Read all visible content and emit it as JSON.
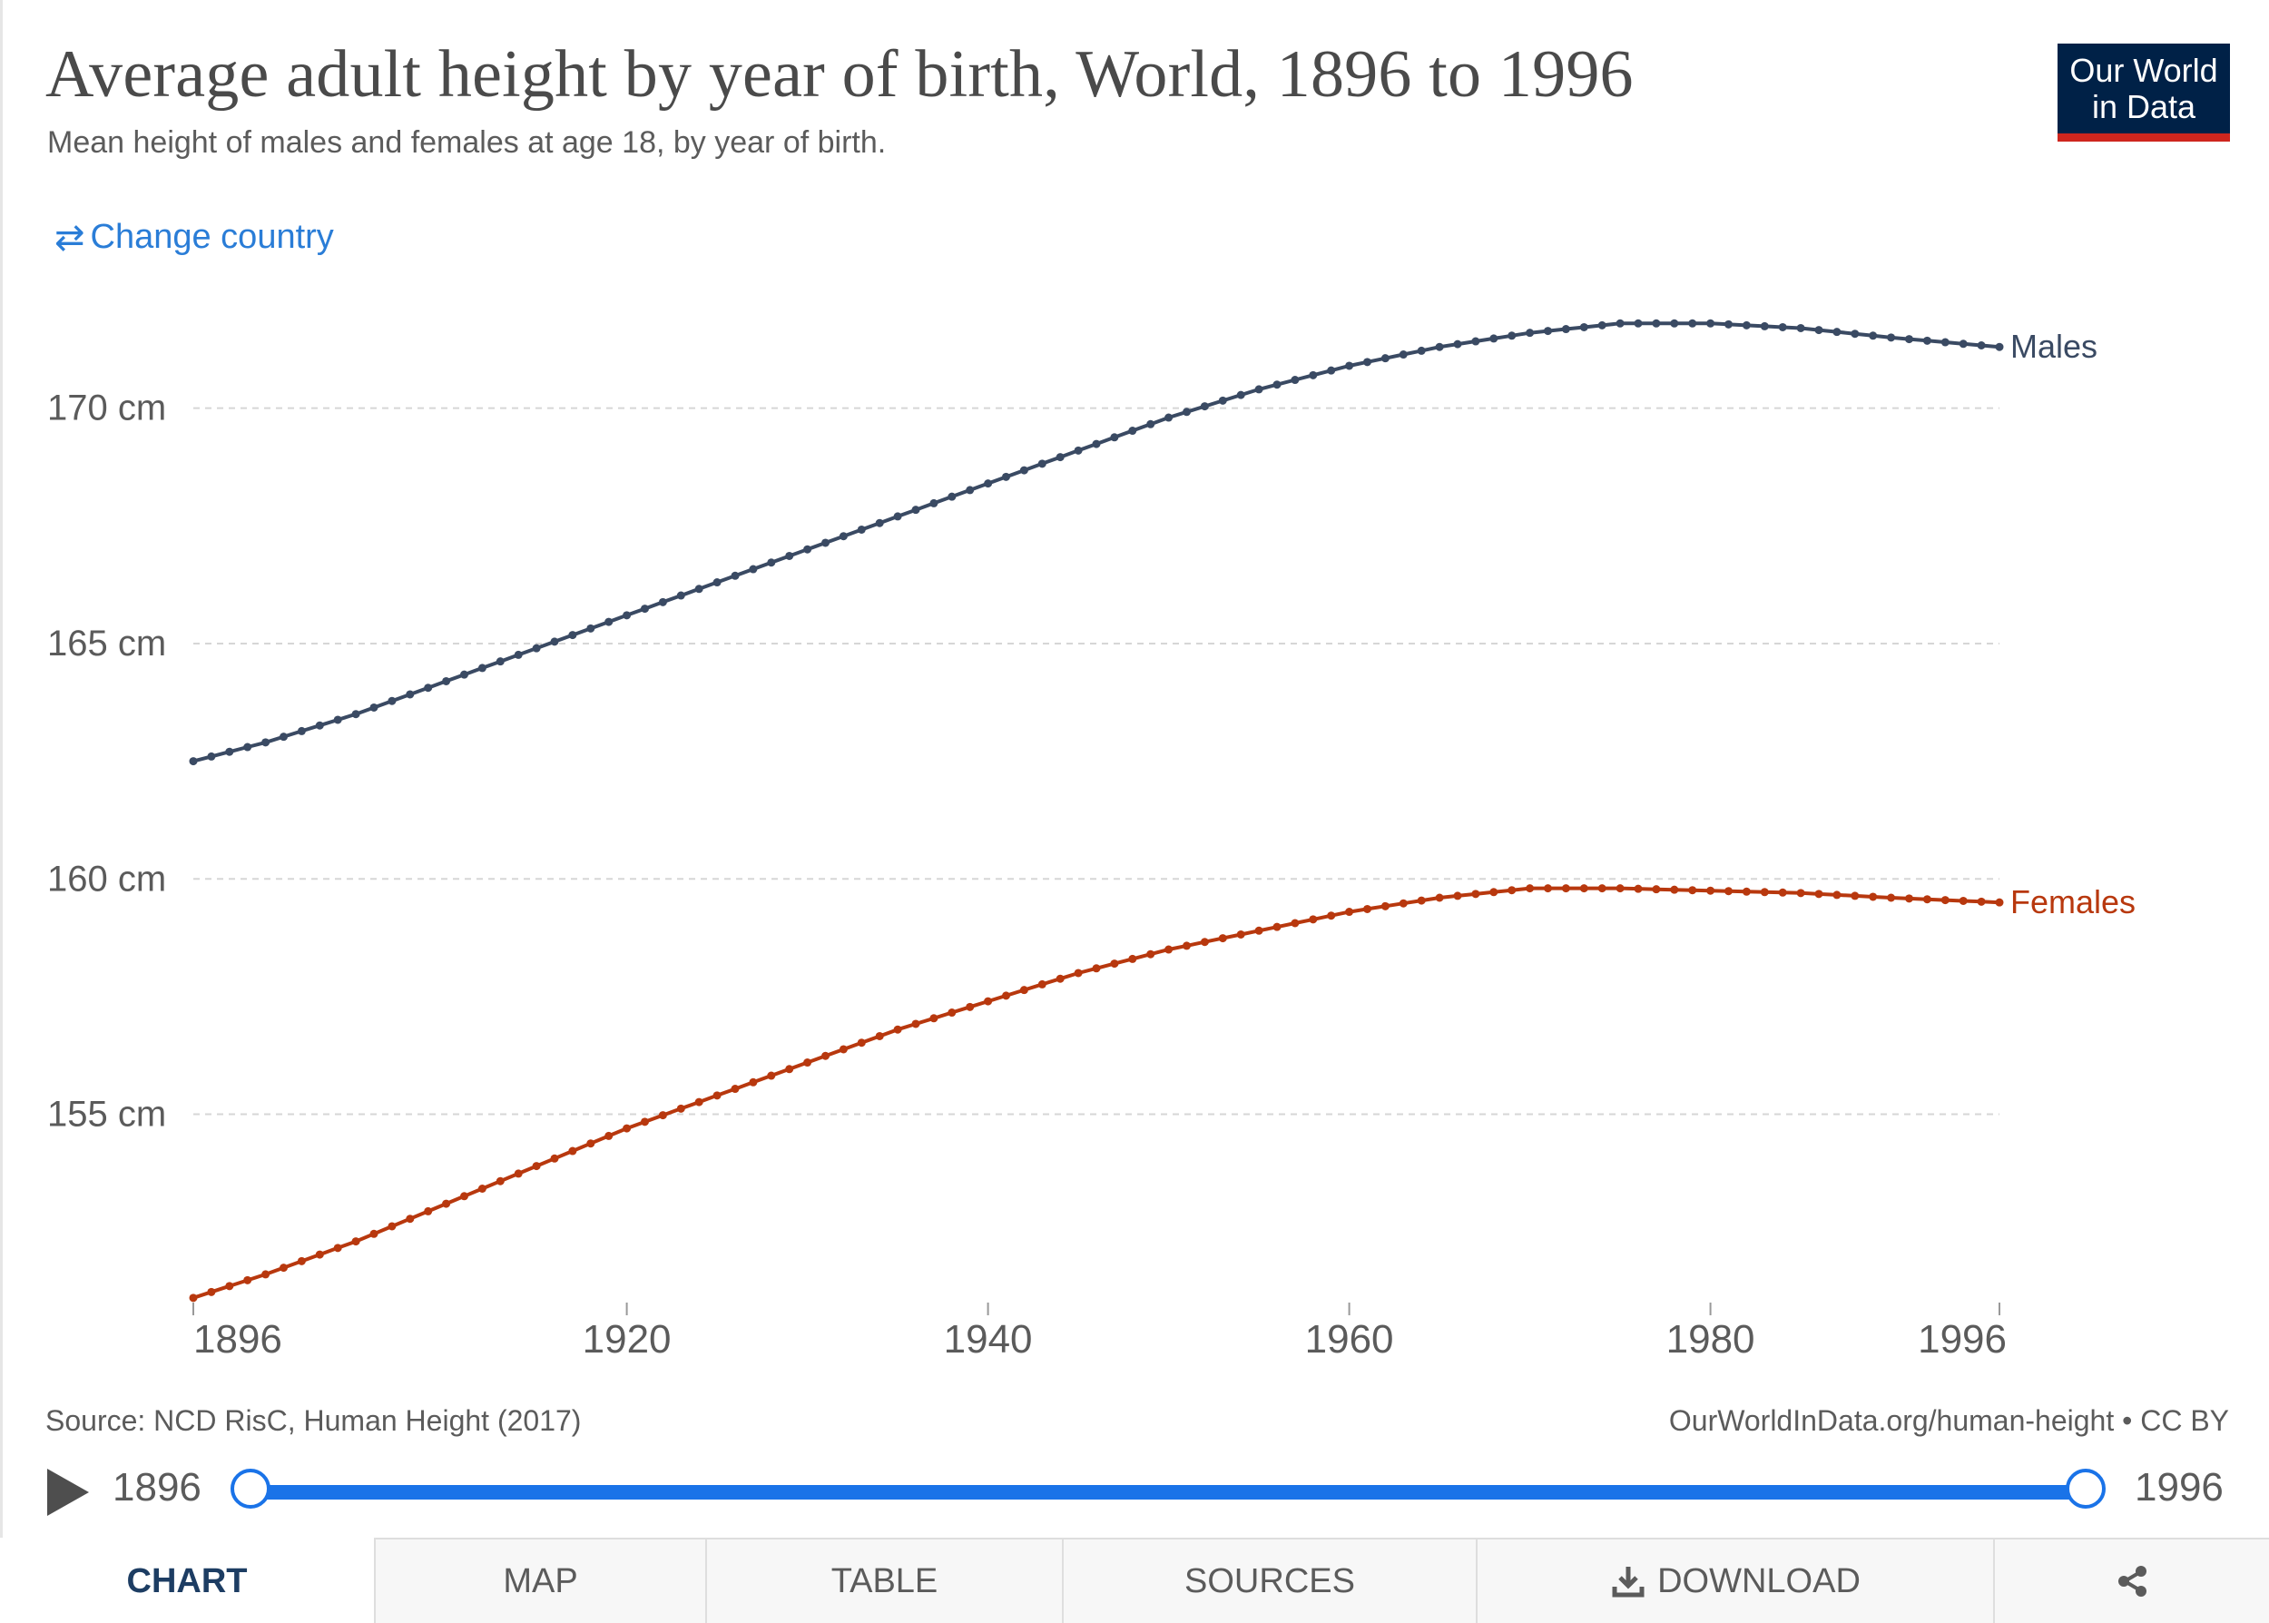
{
  "header": {
    "title": "Average adult height by year of birth, World, 1896 to 1996",
    "subtitle": "Mean height of males and females at age 18, by year of birth.",
    "logo_line1": "Our World",
    "logo_line2": "in Data",
    "change_country_label": "Change country",
    "change_country_icon": "swap-arrows-icon"
  },
  "chart_data": {
    "type": "line",
    "xlim": [
      1896,
      1996
    ],
    "ylim": [
      151,
      172.5
    ],
    "y_ticks": [
      155,
      160,
      165,
      170
    ],
    "y_tick_labels": [
      "155 cm",
      "160 cm",
      "165 cm",
      "170 cm"
    ],
    "x_ticks": [
      1896,
      1920,
      1940,
      1960,
      1980,
      1996
    ],
    "x_tick_labels": [
      "1896",
      "1920",
      "1940",
      "1960",
      "1980",
      "1996"
    ],
    "grid": true,
    "markers": true,
    "series": [
      {
        "name": "Males",
        "color": "#3a4a63",
        "points": [
          [
            1896,
            162.5
          ],
          [
            1900,
            162.9
          ],
          [
            1905,
            163.5
          ],
          [
            1910,
            164.2
          ],
          [
            1915,
            164.9
          ],
          [
            1920,
            165.6
          ],
          [
            1925,
            166.3
          ],
          [
            1930,
            167.0
          ],
          [
            1935,
            167.7
          ],
          [
            1940,
            168.4
          ],
          [
            1945,
            169.1
          ],
          [
            1950,
            169.8
          ],
          [
            1955,
            170.4
          ],
          [
            1960,
            170.9
          ],
          [
            1965,
            171.3
          ],
          [
            1970,
            171.6
          ],
          [
            1975,
            171.8
          ],
          [
            1980,
            171.8
          ],
          [
            1985,
            171.7
          ],
          [
            1990,
            171.5
          ],
          [
            1996,
            171.3
          ]
        ]
      },
      {
        "name": "Females",
        "color": "#b8380e",
        "points": [
          [
            1896,
            151.1
          ],
          [
            1900,
            151.6
          ],
          [
            1905,
            152.3
          ],
          [
            1910,
            153.1
          ],
          [
            1915,
            153.9
          ],
          [
            1920,
            154.7
          ],
          [
            1925,
            155.4
          ],
          [
            1930,
            156.1
          ],
          [
            1935,
            156.8
          ],
          [
            1940,
            157.4
          ],
          [
            1945,
            158.0
          ],
          [
            1950,
            158.5
          ],
          [
            1955,
            158.9
          ],
          [
            1960,
            159.3
          ],
          [
            1965,
            159.6
          ],
          [
            1970,
            159.8
          ],
          [
            1975,
            159.8
          ],
          [
            1980,
            159.75
          ],
          [
            1985,
            159.7
          ],
          [
            1990,
            159.6
          ],
          [
            1996,
            159.5
          ]
        ]
      }
    ]
  },
  "footer": {
    "source": "Source: NCD RisC, Human Height (2017)",
    "credit": "OurWorldInData.org/human-height • CC BY"
  },
  "timeline": {
    "start_label": "1896",
    "end_label": "1996",
    "play_icon": "play-icon"
  },
  "tabs": [
    {
      "label": "CHART",
      "active": true
    },
    {
      "label": "MAP",
      "active": false
    },
    {
      "label": "TABLE",
      "active": false
    },
    {
      "label": "SOURCES",
      "active": false
    },
    {
      "label": "DOWNLOAD",
      "active": false,
      "icon": "download-icon"
    },
    {
      "label": "",
      "active": false,
      "icon": "share-icon"
    }
  ]
}
